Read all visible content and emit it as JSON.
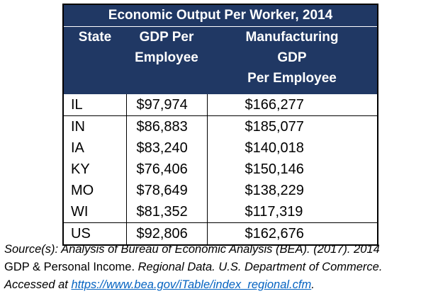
{
  "table": {
    "title": "Economic Output Per Worker, 2014",
    "columns": [
      [
        "State"
      ],
      [
        "GDP Per",
        "Employee"
      ],
      [
        "Manufacturing",
        "GDP",
        "Per Employee"
      ]
    ],
    "rows": [
      [
        "IL",
        "$97,974",
        "$166,277"
      ],
      [
        "IN",
        "$86,883",
        "$185,077"
      ],
      [
        "IA",
        "$83,240",
        "$140,018"
      ],
      [
        "KY",
        "$76,406",
        "$150,146"
      ],
      [
        "MO",
        "$78,649",
        "$138,229"
      ],
      [
        "WI",
        "$81,352",
        "$117,319"
      ],
      [
        "US",
        "$92,806",
        "$162,676"
      ]
    ]
  },
  "source": {
    "line1": "Source(s): Analysis of Bureau of Economic Analysis (BEA). (2017). 2014",
    "line2a": "GDP & Personal Income.",
    "line2b": " Regional Data. U.S. Department of Commerce.",
    "line3a": "Accessed at ",
    "link": "https://www.bea.gov/iTable/index_regional.cfm",
    "line3b": "."
  }
}
